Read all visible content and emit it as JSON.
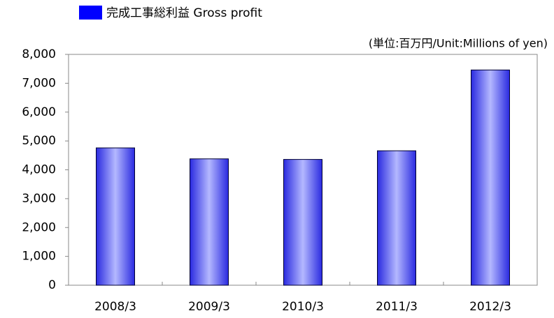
{
  "chart_data": {
    "type": "bar",
    "legend": "完成工事総利益  Gross profit",
    "annotation": "(単位:百万円/Unit:Millions of yen)",
    "categories": [
      "2008/3",
      "2009/3",
      "2010/3",
      "2011/3",
      "2012/3"
    ],
    "series": [
      {
        "name": "完成工事総利益  Gross profit",
        "color": "#0000ff",
        "values": [
          4760,
          4380,
          4360,
          4660,
          7460
        ]
      }
    ],
    "ylim": [
      0,
      8000
    ],
    "yticks": [
      0,
      {
        "value": 1000,
        "label": "1,000"
      },
      {
        "value": 2000,
        "label": "2,000"
      },
      {
        "value": 3000,
        "label": "3,000"
      },
      {
        "value": 4000,
        "label": "4,000"
      },
      {
        "value": 5000,
        "label": "5,000"
      },
      {
        "value": 6000,
        "label": "6,000"
      },
      {
        "value": 7000,
        "label": "7,000"
      },
      {
        "value": 8000,
        "label": "8,000"
      }
    ],
    "grid": false
  }
}
